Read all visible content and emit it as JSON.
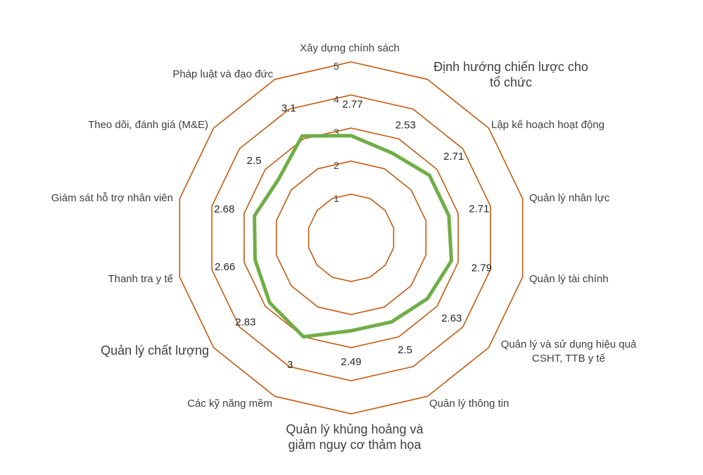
{
  "chart_data": {
    "type": "radar",
    "title": "",
    "categories": [
      "Xây dựng chính sách",
      "Định hướng chiến lược cho tổ chức",
      "Lập kế hoạch hoạt động",
      "Quản lý nhân lực",
      "Quản lý tài chính",
      "Quản lý và sử dụng hiệu quả CSHT, TTB y tế",
      "Quản lý thông tin",
      "Quản lý khủng hoảng và giảm nguy cơ thảm họa",
      "Các kỹ năng mềm",
      "Quản lý chất lượng",
      "Thanh tra y tế",
      "Giám sát hỗ trợ nhân viên",
      "Theo dõi, đánh giá (M&E)",
      "Pháp luật và đạo đức"
    ],
    "series": [
      {
        "values": [
          2.77,
          2.53,
          2.71,
          2.71,
          2.79,
          2.63,
          2.5,
          2.49,
          3,
          2.83,
          2.66,
          2.68,
          2.5,
          3.1
        ]
      }
    ],
    "data_labels": [
      "2.77",
      "2.53",
      "2.71",
      "2.71",
      "2.79",
      "2.63",
      "2.5",
      "2.49",
      "3",
      "2.83",
      "2.66",
      "2.68",
      "2.5",
      "3.1"
    ],
    "r_ticks": [
      "1",
      "2",
      "3",
      "4",
      "5"
    ],
    "r_range": [
      1,
      5
    ],
    "grid_color": "#c55a11",
    "series_color": "#70ad47",
    "legend": "none"
  }
}
